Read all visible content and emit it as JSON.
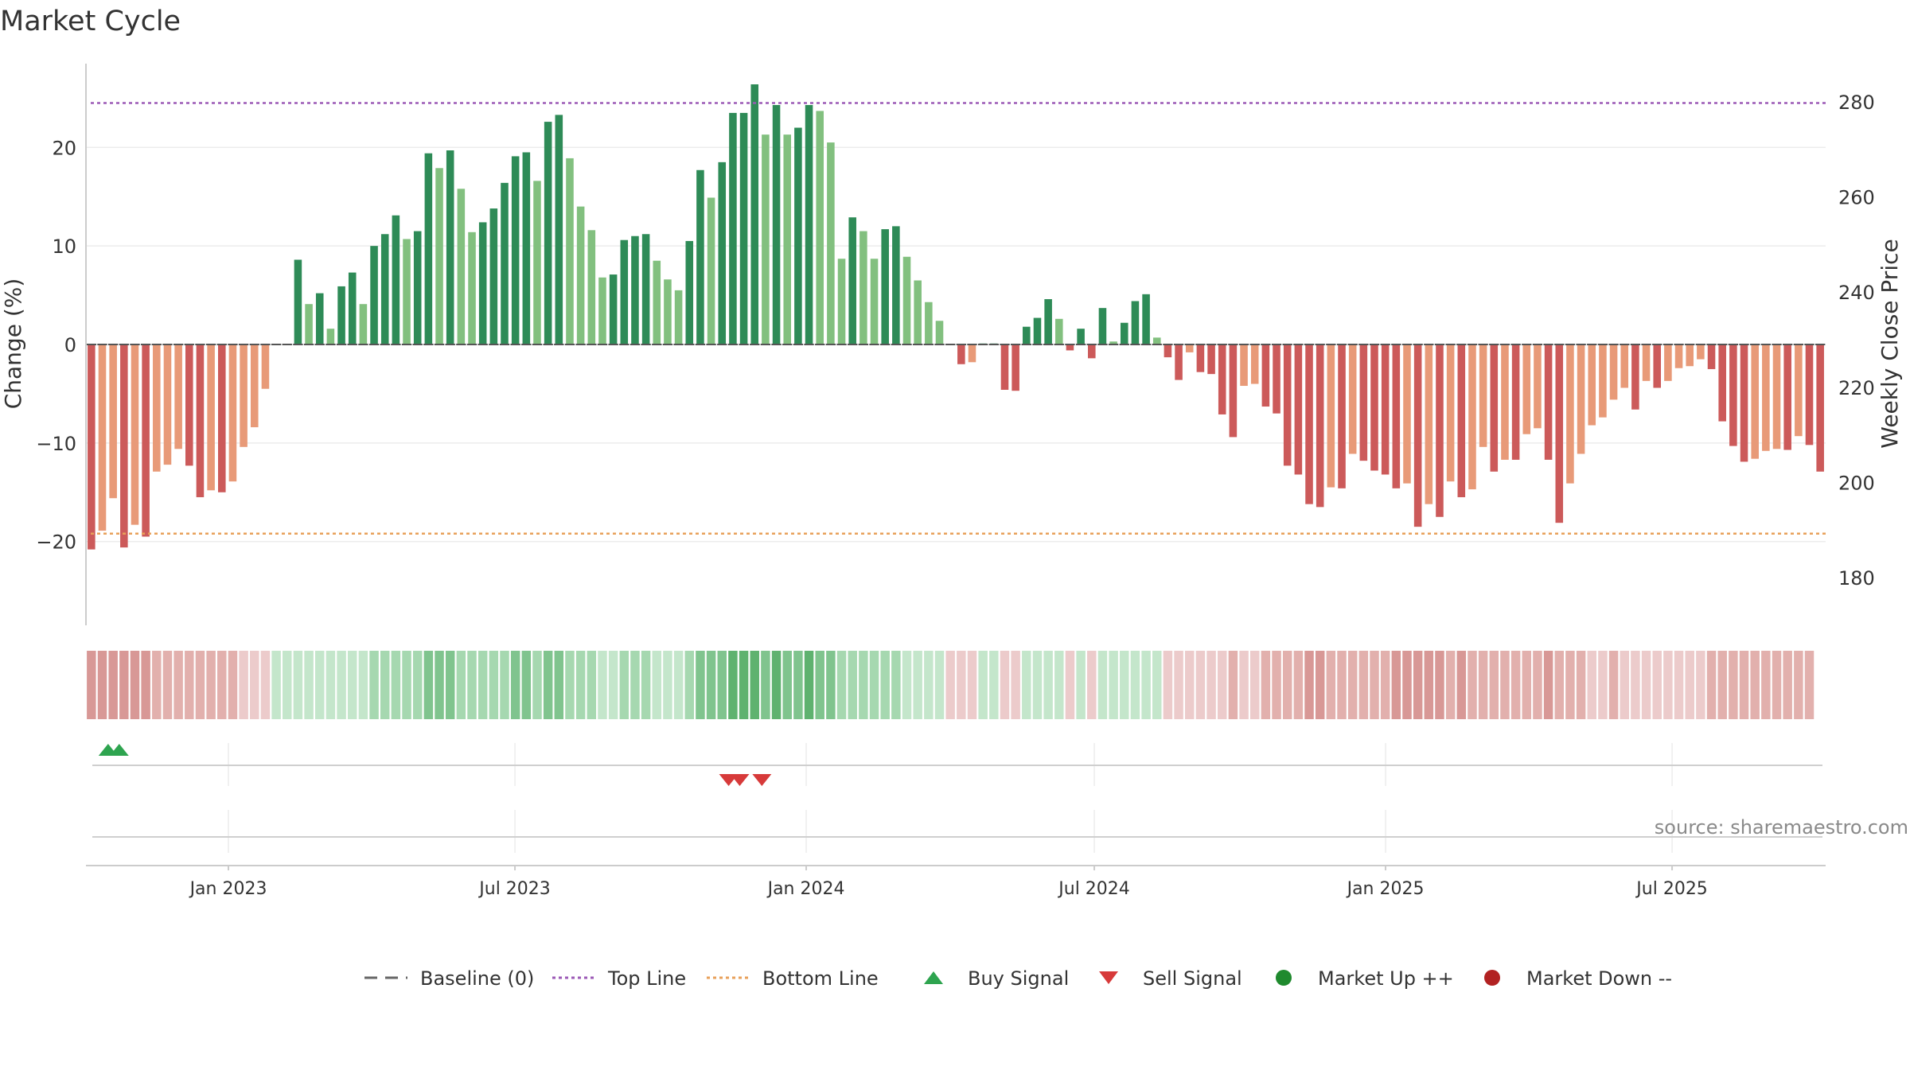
{
  "chart_data": {
    "type": "bar",
    "title": "Market Cycle",
    "ylabel": "Change (%)",
    "y2label": "Weekly Close Price",
    "ylim": [
      -28.5,
      28.5
    ],
    "y2lim": [
      170,
      288
    ],
    "yticks": [
      -20,
      -10,
      0,
      10,
      20
    ],
    "y2ticks": [
      180,
      200,
      220,
      240,
      260,
      280
    ],
    "x_start": "2022-10-03",
    "x_end": "2025-10-06",
    "xticks": [
      {
        "date": "2023-01-01",
        "label": "Jan 2023"
      },
      {
        "date": "2023-07-01",
        "label": "Jul 2023"
      },
      {
        "date": "2024-01-01",
        "label": "Jan 2024"
      },
      {
        "date": "2024-07-01",
        "label": "Jul 2024"
      },
      {
        "date": "2025-01-01",
        "label": "Jan 2025"
      },
      {
        "date": "2025-07-01",
        "label": "Jul 2025"
      }
    ],
    "top_line": 24.5,
    "bottom_line": -19.2,
    "series": [
      {
        "name": "Change",
        "values": [
          -20.8,
          -18.9,
          -15.6,
          -20.6,
          -18.3,
          -19.5,
          -12.9,
          -12.2,
          -10.6,
          -12.3,
          -15.5,
          -14.8,
          -15.0,
          -13.9,
          -10.4,
          -8.4,
          -4.5,
          0.0,
          0.0,
          8.6,
          4.1,
          5.2,
          1.6,
          5.9,
          7.3,
          4.1,
          10.0,
          11.2,
          13.1,
          10.7,
          11.5,
          19.4,
          17.9,
          19.7,
          15.8,
          11.4,
          12.4,
          13.8,
          16.4,
          19.1,
          19.5,
          16.6,
          22.6,
          23.3,
          18.9,
          14.0,
          11.6,
          6.8,
          7.1,
          10.6,
          11.0,
          11.2,
          8.5,
          6.6,
          5.5,
          10.5,
          17.7,
          14.9,
          18.5,
          23.5,
          23.5,
          26.4,
          21.3,
          24.3,
          21.3,
          22.0,
          24.3,
          23.7,
          20.5,
          8.7,
          12.9,
          11.5,
          8.7,
          11.7,
          12.0,
          8.9,
          6.5,
          4.3,
          2.4,
          0.0,
          -2.0,
          -1.8,
          0.1,
          0.1,
          -4.6,
          -4.7,
          1.8,
          2.7,
          4.6,
          2.6,
          -0.6,
          1.6,
          -1.4,
          3.7,
          0.3,
          2.2,
          4.4,
          5.1,
          0.7,
          -1.3,
          -3.6,
          -0.8,
          -2.8,
          -3.0,
          -7.1,
          -9.4,
          -4.2,
          -4.0,
          -6.3,
          -7.0,
          -12.3,
          -13.2,
          -16.2,
          -16.5,
          -14.5,
          -14.6,
          -11.1,
          -11.8,
          -12.8,
          -13.2,
          -14.6,
          -14.1,
          -18.5,
          -16.2,
          -17.5,
          -13.9,
          -15.5,
          -14.7,
          -10.4,
          -12.9,
          -11.7,
          -11.7,
          -9.1,
          -8.5,
          -11.7,
          -18.1,
          -14.1,
          -11.1,
          -8.2,
          -7.4,
          -5.6,
          -4.4,
          -6.6,
          -3.7,
          -4.4,
          -3.7,
          -2.4,
          -2.2,
          -1.5,
          -2.5,
          -7.8,
          -10.3,
          -11.9,
          -11.6,
          -10.8,
          -10.6,
          -10.7,
          -9.3,
          -10.2,
          -12.9
        ]
      }
    ],
    "strength_strip": [
      -3,
      -3,
      -3,
      -3,
      -3,
      -3,
      -2,
      -2,
      -2,
      -2,
      -2,
      -2,
      -2,
      -2,
      -1,
      -1,
      -1,
      1,
      1,
      1,
      1,
      1,
      1,
      1,
      1,
      1,
      2,
      2,
      2,
      2,
      2,
      3,
      3,
      3,
      2,
      2,
      2,
      2,
      2,
      3,
      3,
      2,
      3,
      3,
      2,
      2,
      2,
      1,
      1,
      2,
      2,
      2,
      1,
      1,
      1,
      2,
      3,
      3,
      3,
      4,
      4,
      4,
      3,
      4,
      3,
      3,
      4,
      3,
      3,
      2,
      2,
      2,
      2,
      2,
      2,
      1,
      1,
      1,
      1,
      -1,
      -1,
      -1,
      1,
      1,
      -1,
      -1,
      1,
      1,
      1,
      1,
      -1,
      1,
      -1,
      1,
      1,
      1,
      1,
      1,
      1,
      -1,
      -1,
      -1,
      -1,
      -1,
      -1,
      -2,
      -1,
      -1,
      -2,
      -2,
      -2,
      -2,
      -3,
      -3,
      -2,
      -2,
      -2,
      -2,
      -2,
      -2,
      -3,
      -3,
      -3,
      -3,
      -3,
      -2,
      -3,
      -2,
      -2,
      -2,
      -2,
      -2,
      -2,
      -2,
      -3,
      -2,
      -2,
      -2,
      -1,
      -1,
      -2,
      -1,
      -1,
      -1,
      -1,
      -1,
      -1,
      -1,
      -1,
      -2,
      -2,
      -2,
      -2,
      -2,
      -2,
      -2,
      -2,
      -2,
      -2
    ],
    "buy_signals": [
      "2022-10-17",
      "2022-10-24"
    ],
    "sell_signals": [
      "2023-11-13",
      "2023-11-20",
      "2023-12-04"
    ],
    "grid": true,
    "legend_position": "bottom-center",
    "legend": [
      {
        "label": "Baseline (0)",
        "symbol": "dash",
        "color": "#666666"
      },
      {
        "label": "Top Line",
        "symbol": "dot",
        "color": "#9b59b6"
      },
      {
        "label": "Bottom Line",
        "symbol": "dot",
        "color": "#e8a05a"
      },
      {
        "label": "Buy Signal",
        "symbol": "triangle-up",
        "color": "#2ea44f"
      },
      {
        "label": "Sell Signal",
        "symbol": "triangle-down",
        "color": "#d73a3a"
      },
      {
        "label": "Market Up ++",
        "symbol": "circle",
        "color": "#1f8a2e"
      },
      {
        "label": "Market Down --",
        "symbol": "circle",
        "color": "#b22222"
      }
    ],
    "annotation": "source: sharemaestro.com",
    "colors": {
      "strong_up": "#2e8b57",
      "weak_up": "#82c07f",
      "strong_down": "#cc5a5a",
      "weak_down": "#e89a78",
      "top_line": "#9b59b6",
      "bottom_line": "#e8a05a"
    }
  }
}
